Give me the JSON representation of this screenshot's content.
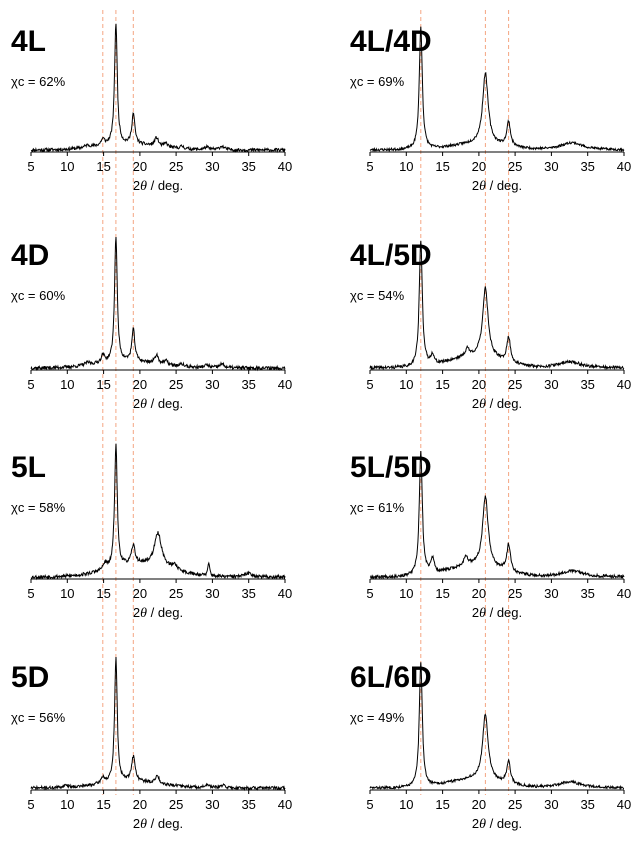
{
  "figure": {
    "ref_line_color": "#f4a582",
    "trace_color": "#000000"
  },
  "chart_data": [
    {
      "type": "line",
      "title": "4L",
      "crystallinity": "χc = 62%",
      "xlabel_prefix": "2",
      "xlabel_theta": "θ",
      "xlabel_suffix": " / deg.",
      "xlim": [
        5,
        40
      ],
      "xticks": [
        5,
        10,
        15,
        20,
        25,
        30,
        35,
        40
      ],
      "reference_lines": [
        14.9,
        16.7,
        19.1
      ],
      "peaks": [
        [
          16.7,
          1.0,
          0.22
        ],
        [
          19.1,
          0.25,
          0.25
        ],
        [
          14.9,
          0.05,
          0.3
        ],
        [
          22.3,
          0.07,
          0.3
        ],
        [
          23.6,
          0.03,
          0.3
        ],
        [
          25.8,
          0.02,
          0.3
        ],
        [
          29.2,
          0.02,
          0.4
        ],
        [
          31.3,
          0.03,
          0.4
        ],
        [
          12.8,
          0.02,
          0.5
        ]
      ],
      "halo": [
        18.5,
        0.045,
        6
      ],
      "noise": 0.013,
      "seed": 11
    },
    {
      "type": "line",
      "title": "4L/4D",
      "crystallinity": "χc = 69%",
      "xlabel_prefix": "2",
      "xlabel_theta": "θ",
      "xlabel_suffix": " / deg.",
      "xlim": [
        5,
        40
      ],
      "xticks": [
        5,
        10,
        15,
        20,
        25,
        30,
        35,
        40
      ],
      "reference_lines": [
        12.0,
        20.9,
        24.1
      ],
      "peaks": [
        [
          12.0,
          1.0,
          0.25
        ],
        [
          20.9,
          0.58,
          0.45
        ],
        [
          24.1,
          0.2,
          0.3
        ],
        [
          32.8,
          0.06,
          1.8
        ]
      ],
      "halo": [
        20,
        0.05,
        5
      ],
      "noise": 0.01,
      "seed": 23
    },
    {
      "type": "line",
      "title": "4D",
      "crystallinity": "χc = 60%",
      "xlabel_prefix": "2",
      "xlabel_theta": "θ",
      "xlabel_suffix": " / deg.",
      "xlim": [
        5,
        40
      ],
      "xticks": [
        5,
        10,
        15,
        20,
        25,
        30,
        35,
        40
      ],
      "reference_lines": [
        14.9,
        16.7,
        19.1
      ],
      "peaks": [
        [
          16.7,
          1.0,
          0.22
        ],
        [
          19.1,
          0.25,
          0.25
        ],
        [
          14.9,
          0.06,
          0.3
        ],
        [
          22.3,
          0.07,
          0.3
        ],
        [
          23.6,
          0.03,
          0.3
        ],
        [
          25.8,
          0.02,
          0.3
        ],
        [
          29.2,
          0.02,
          0.4
        ],
        [
          31.3,
          0.03,
          0.4
        ],
        [
          12.8,
          0.02,
          0.5
        ]
      ],
      "halo": [
        18.5,
        0.05,
        6
      ],
      "noise": 0.013,
      "seed": 37
    },
    {
      "type": "line",
      "title": "4L/5D",
      "crystallinity": "χc = 54%",
      "xlabel_prefix": "2",
      "xlabel_theta": "θ",
      "xlabel_suffix": " / deg.",
      "xlim": [
        5,
        40
      ],
      "xticks": [
        5,
        10,
        15,
        20,
        25,
        30,
        35,
        40
      ],
      "reference_lines": [
        12.0,
        20.9,
        24.1
      ],
      "peaks": [
        [
          12.0,
          1.0,
          0.25
        ],
        [
          20.9,
          0.55,
          0.45
        ],
        [
          24.1,
          0.2,
          0.3
        ],
        [
          13.6,
          0.08,
          0.25
        ],
        [
          18.4,
          0.06,
          0.3
        ],
        [
          32.5,
          0.05,
          1.8
        ]
      ],
      "halo": [
        19.5,
        0.09,
        5
      ],
      "noise": 0.012,
      "seed": 41
    },
    {
      "type": "line",
      "title": "5L",
      "crystallinity": "χc = 58%",
      "xlabel_prefix": "2",
      "xlabel_theta": "θ",
      "xlabel_suffix": " / deg.",
      "xlim": [
        5,
        40
      ],
      "xticks": [
        5,
        10,
        15,
        20,
        25,
        30,
        35,
        40
      ],
      "reference_lines": [
        14.9,
        16.7,
        19.1
      ],
      "peaks": [
        [
          16.7,
          1.0,
          0.22
        ],
        [
          19.1,
          0.15,
          0.3
        ],
        [
          22.5,
          0.27,
          0.6
        ],
        [
          29.5,
          0.1,
          0.15
        ],
        [
          15.2,
          0.05,
          0.3
        ],
        [
          35.0,
          0.03,
          0.6
        ],
        [
          24.8,
          0.04,
          0.4
        ]
      ],
      "halo": [
        20,
        0.1,
        6
      ],
      "noise": 0.014,
      "seed": 53
    },
    {
      "type": "line",
      "title": "5L/5D",
      "crystallinity": "χc = 61%",
      "xlabel_prefix": "2",
      "xlabel_theta": "θ",
      "xlabel_suffix": " / deg.",
      "xlim": [
        5,
        40
      ],
      "xticks": [
        5,
        10,
        15,
        20,
        25,
        30,
        35,
        40
      ],
      "reference_lines": [
        12.0,
        20.9,
        24.1
      ],
      "peaks": [
        [
          12.0,
          1.0,
          0.25
        ],
        [
          20.9,
          0.57,
          0.45
        ],
        [
          24.1,
          0.22,
          0.3
        ],
        [
          13.6,
          0.12,
          0.3
        ],
        [
          18.2,
          0.08,
          0.3
        ],
        [
          32.8,
          0.05,
          1.8
        ]
      ],
      "halo": [
        19.5,
        0.09,
        5
      ],
      "noise": 0.012,
      "seed": 67
    },
    {
      "type": "line",
      "title": "5D",
      "crystallinity": "χc = 56%",
      "xlabel_prefix": "2",
      "xlabel_theta": "θ",
      "xlabel_suffix": " / deg.",
      "xlim": [
        5,
        40
      ],
      "xticks": [
        5,
        10,
        15,
        20,
        25,
        30,
        35,
        40
      ],
      "reference_lines": [
        14.9,
        16.7,
        19.1
      ],
      "peaks": [
        [
          16.7,
          1.0,
          0.22
        ],
        [
          19.1,
          0.2,
          0.3
        ],
        [
          14.9,
          0.05,
          0.3
        ],
        [
          22.4,
          0.06,
          0.3
        ],
        [
          9.8,
          0.02,
          0.4
        ],
        [
          29.3,
          0.02,
          0.4
        ],
        [
          31.5,
          0.02,
          0.4
        ]
      ],
      "halo": [
        19,
        0.05,
        6
      ],
      "noise": 0.012,
      "seed": 71
    },
    {
      "type": "line",
      "title": "6L/6D",
      "crystallinity": "χc = 49%",
      "xlabel_prefix": "2",
      "xlabel_theta": "θ",
      "xlabel_suffix": " / deg.",
      "xlim": [
        5,
        40
      ],
      "xticks": [
        5,
        10,
        15,
        20,
        25,
        30,
        35,
        40
      ],
      "reference_lines": [
        12.0,
        20.9,
        24.1
      ],
      "peaks": [
        [
          12.0,
          1.0,
          0.25
        ],
        [
          20.9,
          0.53,
          0.45
        ],
        [
          24.1,
          0.18,
          0.3
        ],
        [
          32.5,
          0.05,
          1.8
        ]
      ],
      "halo": [
        19.5,
        0.07,
        5
      ],
      "noise": 0.01,
      "seed": 83
    }
  ]
}
